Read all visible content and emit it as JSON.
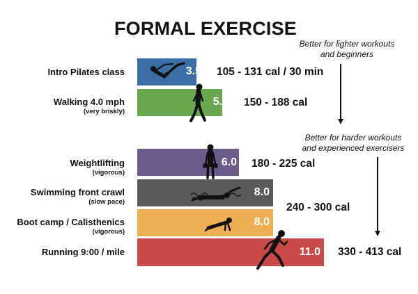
{
  "title": "FORMAL EXERCISE",
  "notes": {
    "lighter": [
      "Better for lighter workouts",
      "and beginners"
    ],
    "harder": [
      "Better for harder workouts",
      "and experienced exercisers"
    ]
  },
  "chart_data": {
    "type": "bar",
    "orientation": "horizontal",
    "title": "FORMAL EXERCISE",
    "categories": [
      "Intro Pilates class",
      "Walking 4.0 mph",
      "Weightlifting",
      "Swimming front crawl",
      "Boot camp / Calisthenics",
      "Running 9:00 / mile"
    ],
    "sublabels": [
      "",
      "(very briskly)",
      "(vigorous)",
      "(slow pace)",
      "(vigorous)",
      ""
    ],
    "values": [
      3.5,
      5.0,
      6.0,
      8.0,
      8.0,
      11.0
    ],
    "value_labels": [
      "3.5",
      "5.0",
      "6.0",
      "8.0",
      "8.0",
      "11.0"
    ],
    "colors": [
      "#3a6ea5",
      "#6aa84f",
      "#6b5b8c",
      "#5a5a5a",
      "#efae53",
      "#c94848"
    ],
    "calorie_labels": [
      "105 - 131 cal / 30 min",
      "150 - 188 cal",
      "180 - 225 cal",
      "240 - 300 cal",
      "330 - 413 cal"
    ],
    "xlim": [
      0,
      11.0
    ],
    "grid": false,
    "legend": "none"
  },
  "icons": [
    "pilates-figure-icon",
    "walking-figure-icon",
    "weightlifting-figure-icon",
    "swimming-figure-icon",
    "pushup-figure-icon",
    "running-figure-icon"
  ]
}
